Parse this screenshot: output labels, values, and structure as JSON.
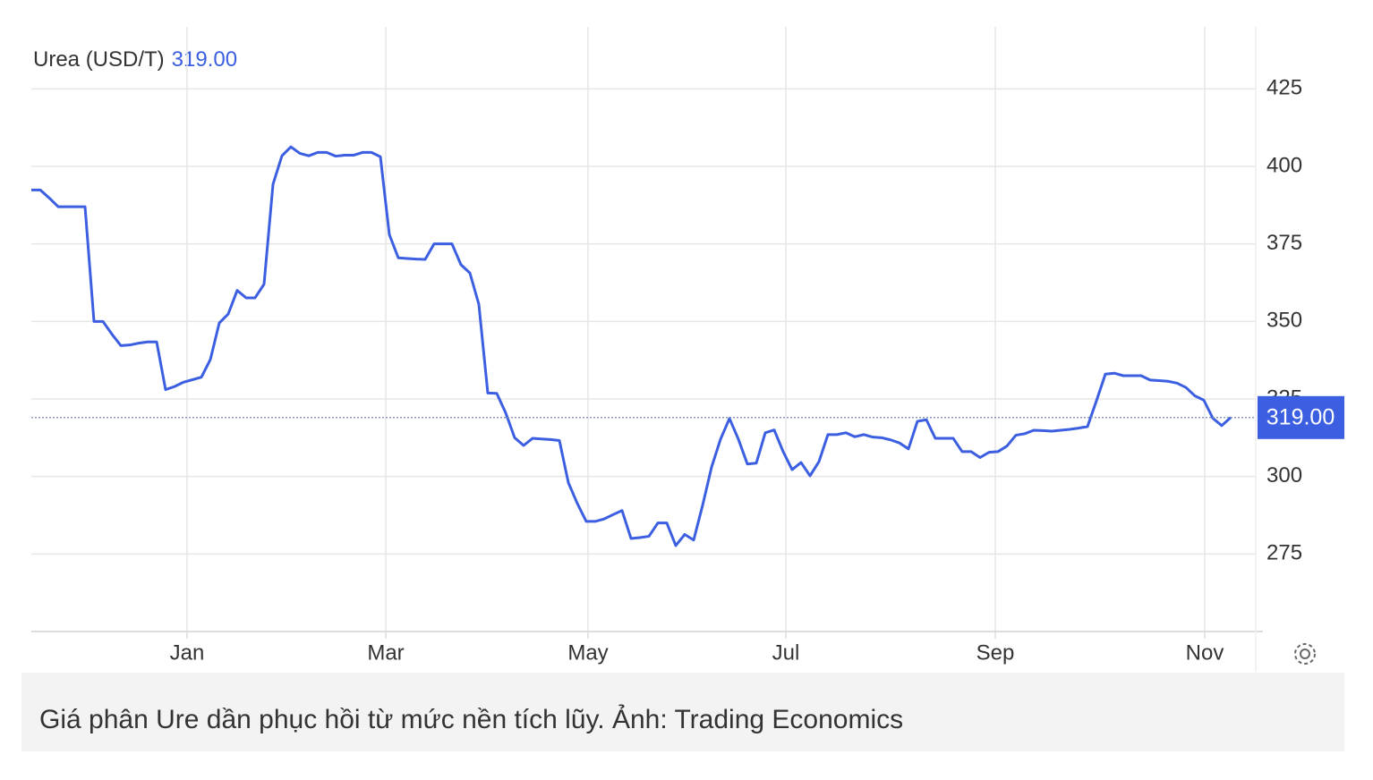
{
  "chart_data": {
    "type": "line",
    "title": "Urea (USD/T)",
    "last_value": {
      "value": 319,
      "label": "319.00"
    },
    "caption": "Giá phân Ure dần phục hồi từ mức nền tích lũy. Ảnh: Trading Economics",
    "series": [
      {
        "name": "Urea",
        "color": "#3b5fe0",
        "values": [
          392.4,
          392.4,
          389.8,
          387,
          387,
          387,
          387,
          350,
          350,
          345.9,
          342.2,
          342.4,
          343,
          343.4,
          343.4,
          328,
          329,
          330.4,
          331.2,
          332,
          337.7,
          349.5,
          352.4,
          360,
          357.6,
          357.6,
          362,
          394.2,
          403.4,
          406.3,
          404.2,
          403.4,
          404.5,
          404.5,
          403.3,
          403.6,
          403.6,
          404.5,
          404.5,
          403.1,
          378,
          370.5,
          370.3,
          370.1,
          370,
          375,
          375,
          375,
          368.3,
          365.6,
          355.5,
          326.9,
          326.8,
          320.5,
          312.5,
          310,
          312.3,
          312.1,
          311.9,
          311.6,
          298,
          291.3,
          285.5,
          285.5,
          286.3,
          287.7,
          289,
          280,
          280.3,
          280.7,
          285,
          285,
          277.7,
          281.3,
          279.5,
          290.7,
          303,
          312,
          318.7,
          312,
          304,
          304.3,
          314.1,
          315,
          308,
          302.2,
          304.5,
          300.2,
          304.8,
          313.5,
          313.5,
          314.1,
          312.8,
          313.5,
          312.7,
          312.5,
          311.8,
          310.8,
          308.9,
          317.8,
          318.3,
          312.3,
          312.3,
          312.3,
          308,
          308,
          306.1,
          307.8,
          308,
          309.8,
          313.3,
          313.8,
          314.9,
          314.8,
          314.6,
          314.9,
          315.2,
          315.6,
          316.1,
          324.4,
          333,
          333.3,
          332.5,
          332.5,
          332.5,
          331.1,
          330.9,
          330.7,
          330.1,
          328.7,
          326,
          324.6,
          318.8,
          316.4,
          319
        ]
      }
    ],
    "xlim": [
      0,
      136.8
    ],
    "xticks": [
      {
        "value": 17.4,
        "label": "Jan"
      },
      {
        "value": 39.6,
        "label": "Mar"
      },
      {
        "value": 62.2,
        "label": "May"
      },
      {
        "value": 84.3,
        "label": "Jul"
      },
      {
        "value": 107.7,
        "label": "Sep"
      },
      {
        "value": 131.1,
        "label": "Nov"
      }
    ],
    "ylim": [
      250,
      445
    ],
    "yticks": [
      275,
      300,
      325,
      350,
      375,
      400,
      425
    ],
    "grid": true
  }
}
